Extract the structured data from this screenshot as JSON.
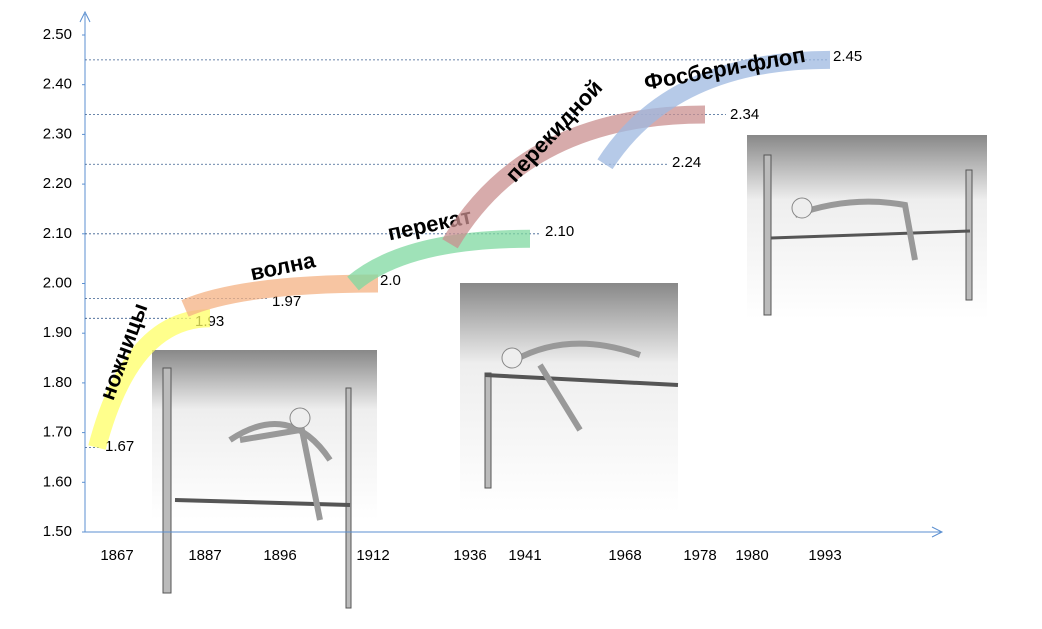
{
  "chart_data": {
    "type": "arc",
    "categories": [
      "1867",
      "1887",
      "1896",
      "1912",
      "1936",
      "1941",
      "1968",
      "1978",
      "1980",
      "1993"
    ],
    "ylim": [
      1.5,
      2.5
    ],
    "yticks": [
      {
        "value": 1.5,
        "label": "1.50"
      },
      {
        "value": 1.6,
        "label": "1.60"
      },
      {
        "value": 1.7,
        "label": "1.70"
      },
      {
        "value": 1.8,
        "label": "1.80"
      },
      {
        "value": 1.9,
        "label": "1.90"
      },
      {
        "value": 2.0,
        "label": "2.00"
      },
      {
        "value": 2.1,
        "label": "2.10"
      },
      {
        "value": 2.2,
        "label": "2.20"
      },
      {
        "value": 2.3,
        "label": "2.30"
      },
      {
        "value": 2.4,
        "label": "2.40"
      },
      {
        "value": 2.5,
        "label": "2.50"
      }
    ],
    "series": [
      {
        "name": "ножницы",
        "color": "#ffff66",
        "x": [
          "1867",
          "1887"
        ],
        "values": [
          1.67,
          1.93
        ]
      },
      {
        "name": "волна",
        "color": "#f4b183",
        "x": [
          "1887",
          "1912"
        ],
        "values": [
          1.95,
          2.0
        ]
      },
      {
        "name": "перекат",
        "color": "#7fd8a0",
        "x": [
          "1912",
          "1941"
        ],
        "values": [
          2.0,
          2.09
        ]
      },
      {
        "name": "перекидной",
        "color": "#c98f8f",
        "x": [
          "1936",
          "1978"
        ],
        "values": [
          2.08,
          2.34
        ]
      },
      {
        "name": "Фосбери-флоп",
        "color": "#9db8e0",
        "x": [
          "1968",
          "1993"
        ],
        "values": [
          2.24,
          2.45
        ]
      }
    ],
    "records": {
      "values": [
        1.67,
        1.93,
        1.97,
        2.0,
        2.1,
        2.24,
        2.34,
        2.45
      ],
      "value_labels": [
        "1.67",
        "1.93",
        "1.97",
        "2.0",
        "2.10",
        "2.24",
        "2.34",
        "2.45"
      ]
    }
  }
}
